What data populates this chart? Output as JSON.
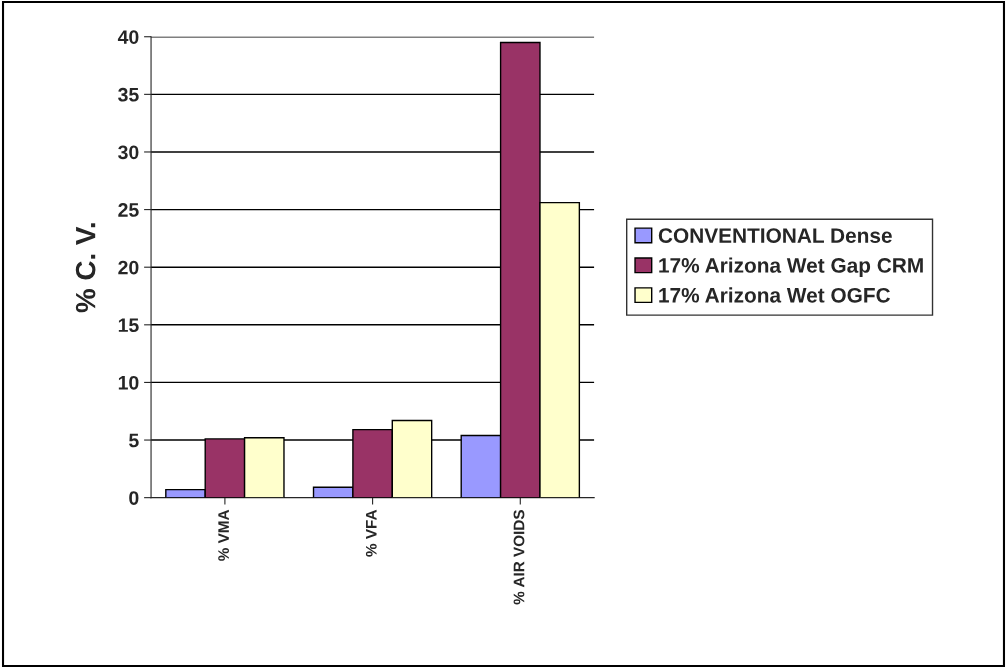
{
  "chart_data": {
    "type": "bar",
    "ylabel": "% C. V.",
    "categories": [
      "% VMA",
      "% VFA",
      "% AIR VOIDS"
    ],
    "series": [
      {
        "name": "CONVENTIONAL Dense",
        "color": "#9999ff",
        "values": [
          0.7,
          0.9,
          5.4
        ]
      },
      {
        "name": "17% Arizona Wet Gap CRM",
        "color": "#993366",
        "values": [
          5.1,
          5.9,
          39.5
        ]
      },
      {
        "name": "17% Arizona Wet OGFC",
        "color": "#ffffcc",
        "values": [
          5.2,
          6.7,
          25.6
        ]
      }
    ],
    "ylim": [
      0,
      40
    ],
    "yticks": [
      0,
      5,
      10,
      15,
      20,
      25,
      30,
      35,
      40
    ],
    "grid": "y",
    "legend": "right"
  }
}
